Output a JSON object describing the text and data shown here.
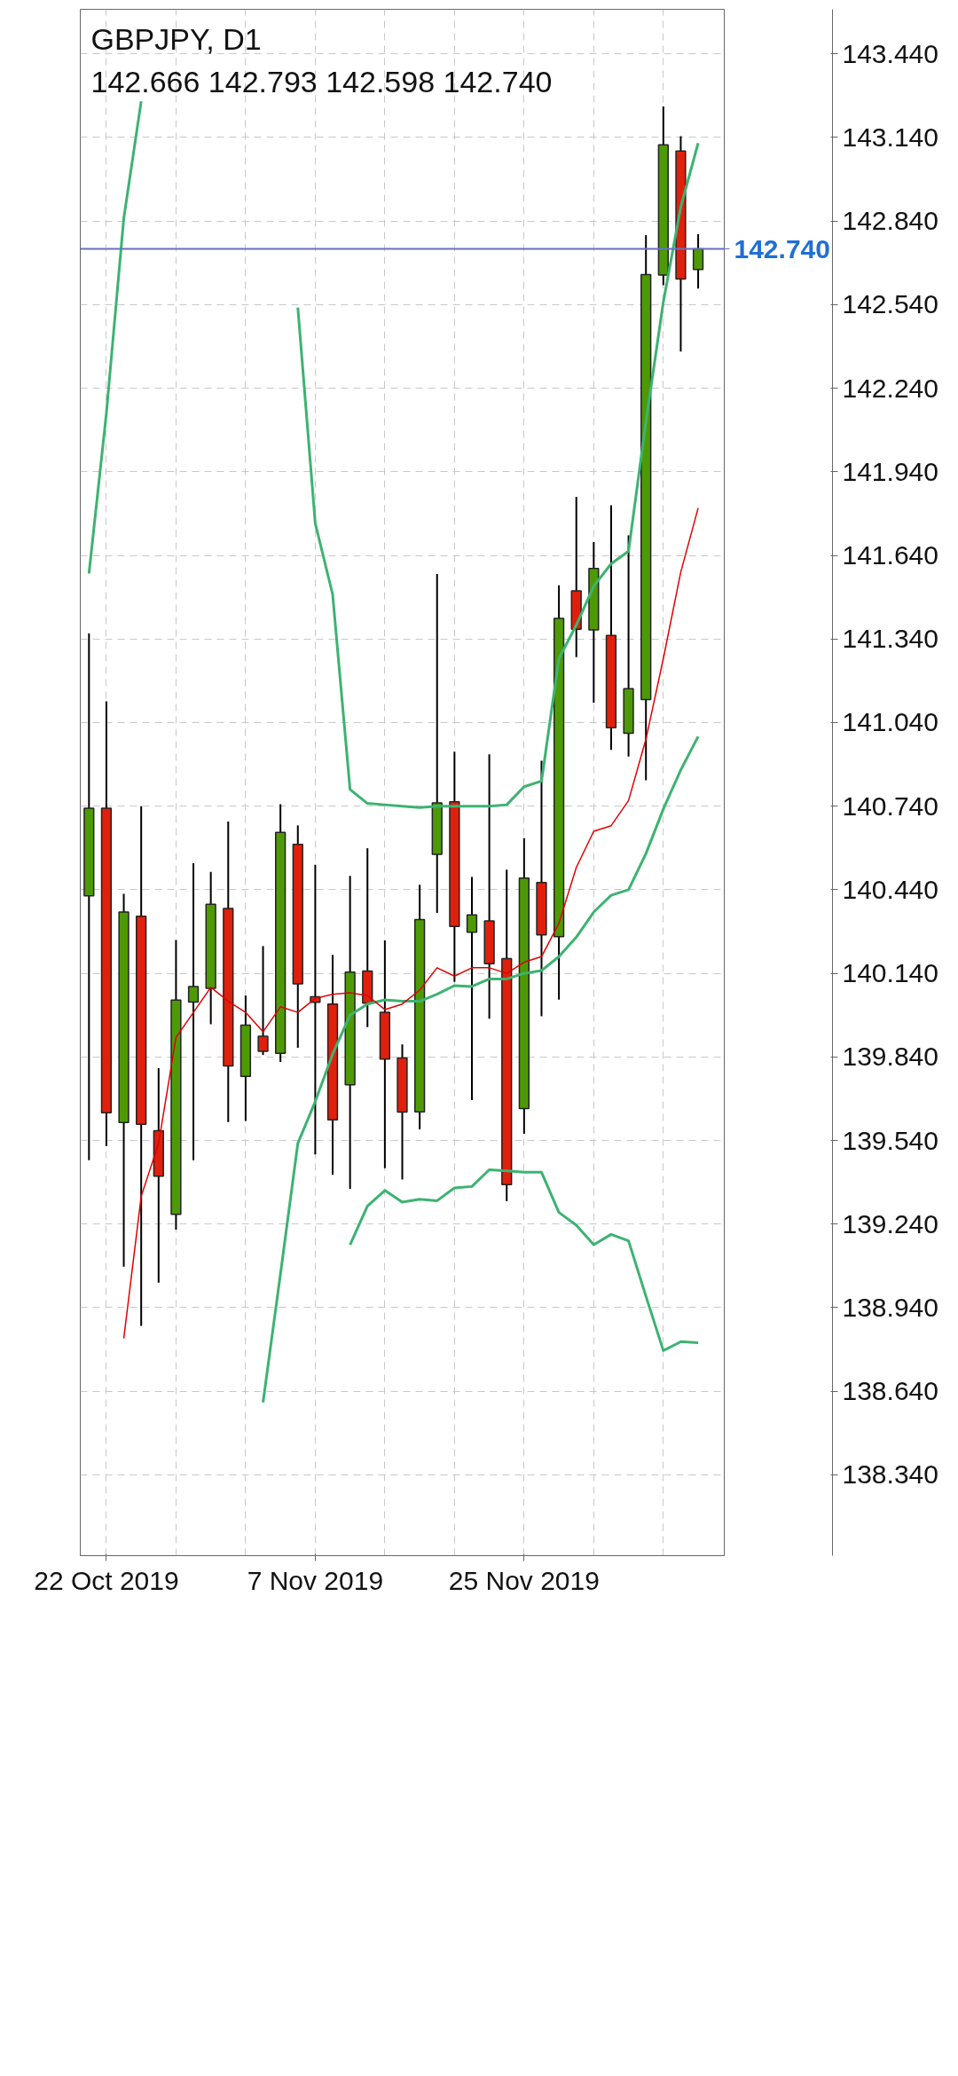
{
  "chart_data": {
    "type": "candlestick",
    "title": "GBPJPY, D1",
    "subtitle": "142.666 142.793 142.598 142.740",
    "categories": [
      null,
      "22 Oct 2019",
      null,
      null,
      null,
      null,
      null,
      null,
      null,
      null,
      null,
      null,
      null,
      "7 Nov 2019",
      null,
      null,
      null,
      null,
      null,
      null,
      null,
      null,
      null,
      null,
      null,
      "25 Nov 2019",
      null,
      null,
      null,
      null,
      null,
      null,
      null,
      null,
      null,
      null
    ],
    "ohlc": [
      [
        140.418,
        141.36,
        139.469,
        140.733
      ],
      [
        140.733,
        141.116,
        139.52,
        139.64
      ],
      [
        139.605,
        140.425,
        139.087,
        140.36
      ],
      [
        140.345,
        140.74,
        138.875,
        139.598
      ],
      [
        139.575,
        139.8,
        139.03,
        139.412
      ],
      [
        139.275,
        140.26,
        139.22,
        140.044
      ],
      [
        140.037,
        140.535,
        139.469,
        140.093
      ],
      [
        140.086,
        140.504,
        139.957,
        140.388
      ],
      [
        140.373,
        140.685,
        139.606,
        139.808
      ],
      [
        139.77,
        140.06,
        139.61,
        139.954
      ],
      [
        139.914,
        140.238,
        139.847,
        139.86
      ],
      [
        139.853,
        140.747,
        139.822,
        140.646
      ],
      [
        140.603,
        140.671,
        139.873,
        140.102
      ],
      [
        140.056,
        140.53,
        139.49,
        140.036
      ],
      [
        140.03,
        140.206,
        139.417,
        139.614
      ],
      [
        139.74,
        140.49,
        139.367,
        140.144
      ],
      [
        140.148,
        140.589,
        139.947,
        140.033
      ],
      [
        140.0,
        140.258,
        139.441,
        139.832
      ],
      [
        139.836,
        139.885,
        139.4,
        139.642
      ],
      [
        139.643,
        140.458,
        139.58,
        140.333
      ],
      [
        140.567,
        141.573,
        140.357,
        140.752
      ],
      [
        140.756,
        140.936,
        140.109,
        140.308
      ],
      [
        140.288,
        140.486,
        139.685,
        140.35
      ],
      [
        140.328,
        140.926,
        139.977,
        140.175
      ],
      [
        140.193,
        140.512,
        139.322,
        139.382
      ],
      [
        139.655,
        140.625,
        139.564,
        140.482
      ],
      [
        140.466,
        140.903,
        139.986,
        140.278
      ],
      [
        140.272,
        141.533,
        140.046,
        141.414
      ],
      [
        141.513,
        141.85,
        141.275,
        141.375
      ],
      [
        141.373,
        141.688,
        141.111,
        141.593
      ],
      [
        141.353,
        141.82,
        140.942,
        141.022
      ],
      [
        141.002,
        141.712,
        140.918,
        141.162
      ],
      [
        141.123,
        142.79,
        140.833,
        142.648
      ],
      [
        142.646,
        143.251,
        142.61,
        143.114
      ],
      [
        143.091,
        143.145,
        142.372,
        142.632
      ],
      [
        142.666,
        142.793,
        142.598,
        142.74
      ]
    ],
    "colors": [
      "#4e9a06",
      "#e0200c",
      "#4e9a06",
      "#e0200c",
      "#e0200c",
      "#4e9a06",
      "#4e9a06",
      "#4e9a06",
      "#e0200c",
      "#4e9a06",
      "#e0200c",
      "#4e9a06",
      "#e0200c",
      "#e0200c",
      "#e0200c",
      "#4e9a06",
      "#e0200c",
      "#e0200c",
      "#e0200c",
      "#4e9a06",
      "#4e9a06",
      "#e0200c",
      "#4e9a06",
      "#e0200c",
      "#e0200c",
      "#4e9a06",
      "#e0200c",
      "#4e9a06",
      "#e0200c",
      "#4e9a06",
      "#e0200c",
      "#4e9a06",
      "#4e9a06",
      "#4e9a06",
      "#e0200c",
      "#4e9a06"
    ],
    "series": [
      {
        "type": "line",
        "color": "#3cb371",
        "values": [
          141.575,
          142.15,
          142.85,
          143.27,
          null,
          null,
          null,
          null,
          null,
          null,
          null,
          null,
          142.53,
          141.755,
          141.5,
          140.8,
          140.75,
          140.745,
          140.74,
          140.735,
          140.74,
          140.74,
          140.74,
          140.74,
          140.745,
          140.81,
          140.83,
          141.27,
          141.39,
          141.53,
          141.61,
          141.655,
          142.12,
          142.55,
          142.89,
          143.12
        ]
      },
      {
        "type": "line",
        "color": "#3cb371",
        "values": [
          null,
          null,
          null,
          null,
          null,
          null,
          null,
          null,
          null,
          null,
          138.6,
          139.06,
          139.53,
          139.68,
          139.85,
          139.99,
          140.03,
          140.045,
          140.04,
          140.04,
          140.065,
          140.096,
          140.093,
          140.12,
          140.12,
          140.14,
          140.15,
          140.2,
          140.27,
          140.36,
          140.42,
          140.44,
          140.57,
          140.73,
          140.87,
          140.99
        ]
      },
      {
        "type": "line",
        "color": "#3cb371",
        "values": [
          null,
          null,
          null,
          null,
          null,
          null,
          null,
          null,
          null,
          null,
          null,
          null,
          null,
          null,
          null,
          139.166,
          139.305,
          139.361,
          139.319,
          139.329,
          139.324,
          139.37,
          139.375,
          139.435,
          139.431,
          139.426,
          139.426,
          139.282,
          139.236,
          139.166,
          139.203,
          139.18,
          138.981,
          138.786,
          138.818,
          138.814
        ]
      },
      {
        "type": "line",
        "color": "#e00000",
        "values": [
          null,
          null,
          138.83,
          139.34,
          139.53,
          139.91,
          140.0,
          140.09,
          140.04,
          140.0,
          139.93,
          140.02,
          140.0,
          140.05,
          140.065,
          140.07,
          140.06,
          140.01,
          140.03,
          140.08,
          140.16,
          140.13,
          140.16,
          140.16,
          140.14,
          140.18,
          140.2,
          140.32,
          140.52,
          140.65,
          140.67,
          140.76,
          140.98,
          141.27,
          141.58,
          141.81
        ]
      }
    ],
    "ylim": [
      138.05,
      143.6
    ],
    "yticks": [
      {
        "value": 138.34,
        "label": "138.340"
      },
      {
        "value": 138.64,
        "label": "138.640"
      },
      {
        "value": 138.94,
        "label": "138.940"
      },
      {
        "value": 139.24,
        "label": "139.240"
      },
      {
        "value": 139.54,
        "label": "139.540"
      },
      {
        "value": 139.84,
        "label": "139.840"
      },
      {
        "value": 140.14,
        "label": "140.140"
      },
      {
        "value": 140.44,
        "label": "140.440"
      },
      {
        "value": 140.74,
        "label": "140.740"
      },
      {
        "value": 141.04,
        "label": "141.040"
      },
      {
        "value": 141.34,
        "label": "141.340"
      },
      {
        "value": 141.64,
        "label": "141.640"
      },
      {
        "value": 141.94,
        "label": "141.940"
      },
      {
        "value": 142.24,
        "label": "142.240"
      },
      {
        "value": 142.54,
        "label": "142.540"
      },
      {
        "value": 142.84,
        "label": "142.840"
      },
      {
        "value": 143.14,
        "label": "143.140"
      },
      {
        "value": 143.44,
        "label": "143.440"
      }
    ],
    "ref_lines": [
      {
        "axis": "y",
        "value": 142.74,
        "label": "142.740",
        "color": "#6a6fc0"
      }
    ],
    "grid": true
  }
}
